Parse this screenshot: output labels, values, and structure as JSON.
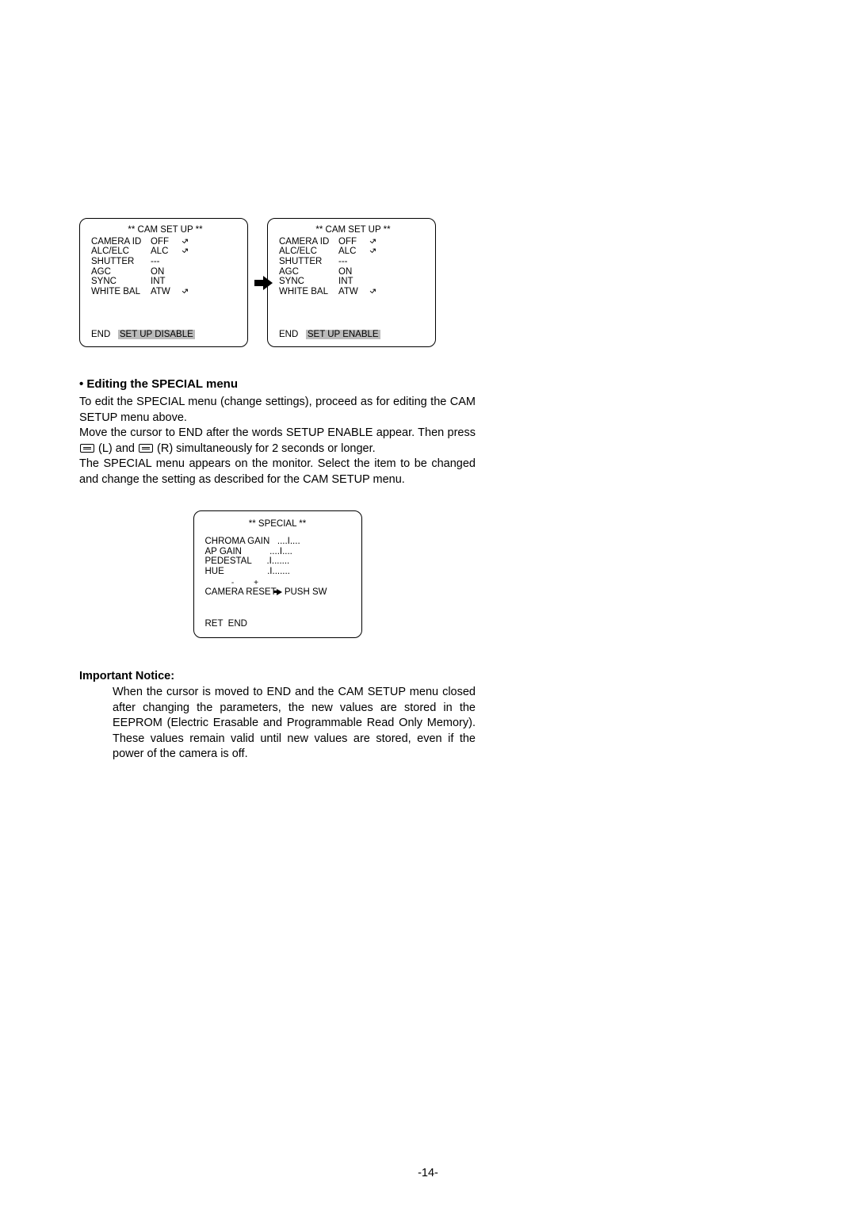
{
  "camSetup": {
    "title": "** CAM SET UP **",
    "rows": [
      {
        "label": "CAMERA ID",
        "value": "OFF",
        "arrow": true
      },
      {
        "label": "ALC/ELC",
        "value": "ALC",
        "arrow": true
      },
      {
        "label": "SHUTTER",
        "value": "---",
        "arrow": false
      },
      {
        "label": "AGC",
        "value": "ON",
        "arrow": false
      },
      {
        "label": "SYNC",
        "value": "INT",
        "arrow": false
      },
      {
        "label": "WHITE BAL",
        "value": "ATW",
        "arrow": true
      }
    ],
    "footerLeft": "END",
    "footerDisable": "SET UP DISABLE",
    "footerEnable": "SET UP ENABLE"
  },
  "section": {
    "heading": "• Editing the SPECIAL menu",
    "p1": "To edit the SPECIAL menu (change settings), proceed as for editing the CAM SETUP menu above.",
    "p2a": "Move the cursor to END after the words SETUP ENABLE appear. Then press ",
    "p2b": " (L) and ",
    "p2c": " (R) simultaneously for 2 seconds or longer.",
    "p3": "The SPECIAL menu appears on the monitor. Select the item to be changed and change the setting as described for the CAM SETUP menu."
  },
  "special": {
    "title": "** SPECIAL **",
    "rows": [
      {
        "label": "CHROMA GAIN",
        "slider": "....I...."
      },
      {
        "label": "AP GAIN",
        "slider": "....I...."
      },
      {
        "label": "PEDESTAL",
        "slider": ".I......."
      },
      {
        "label": "HUE",
        "slider": ".I......."
      }
    ],
    "signs": "            -         +",
    "resetLabel": "CAMERA RESET",
    "resetAction": "PUSH SW",
    "footer": "RET  END"
  },
  "notice": {
    "heading": "Important Notice:",
    "body": "When the cursor is moved to END and the CAM SETUP menu closed after changing the parameters, the new values are stored in the EEPROM (Electric Erasable and Programmable Read Only Memory). These values remain valid until new values are stored, even if the power of the camera is off."
  },
  "pageNumber": "-14-"
}
